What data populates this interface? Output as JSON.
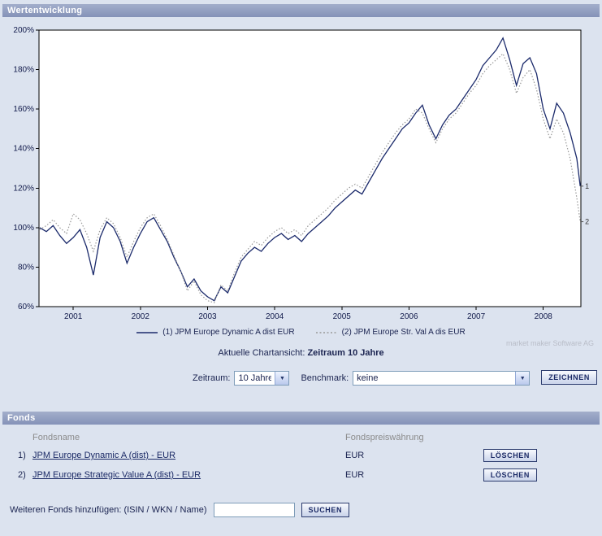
{
  "header": {
    "title": "Wertentwicklung"
  },
  "watermark": "market maker Software AG",
  "caption": {
    "prefix": "Aktuelle Chartansicht:",
    "bold": "Zeitraum 10 Jahre"
  },
  "controls": {
    "zeitraum_label": "Zeitraum:",
    "zeitraum_value": "10 Jahre",
    "benchmark_label": "Benchmark:",
    "benchmark_value": "keine",
    "draw_button": "ZEICHNEN"
  },
  "fonds": {
    "title": "Fonds",
    "columns": {
      "name": "Fondsname",
      "currency": "Fondspreiswährung"
    },
    "rows": [
      {
        "index": "1)",
        "name": "JPM Europe Dynamic A (dist) - EUR",
        "currency": "EUR",
        "delete_label": "LÖSCHEN"
      },
      {
        "index": "2)",
        "name": "JPM Europe Strategic Value A (dist) - EUR",
        "currency": "EUR",
        "delete_label": "LÖSCHEN"
      }
    ],
    "add": {
      "label": "Weiteren Fonds hinzufügen: (ISIN / WKN / Name)",
      "input_value": "",
      "search_button": "SUCHEN"
    }
  },
  "chart_data": {
    "type": "line",
    "title": "Wertentwicklung",
    "xlabel": "",
    "ylabel": "",
    "xlim": [
      2000.49,
      2008.56
    ],
    "ylim": [
      60,
      200
    ],
    "y_ticks": [
      60,
      80,
      100,
      120,
      140,
      160,
      180,
      200
    ],
    "y_tick_suffix": "%",
    "x_ticks": [
      2001,
      2002,
      2003,
      2004,
      2005,
      2006,
      2007,
      2008
    ],
    "grid": false,
    "legend_position": "bottom",
    "x": [
      2000.5,
      2000.6,
      2000.7,
      2000.8,
      2000.9,
      2001.0,
      2001.1,
      2001.2,
      2001.3,
      2001.4,
      2001.5,
      2001.6,
      2001.7,
      2001.8,
      2001.9,
      2002.0,
      2002.1,
      2002.2,
      2002.3,
      2002.4,
      2002.5,
      2002.6,
      2002.7,
      2002.8,
      2002.9,
      2003.0,
      2003.1,
      2003.2,
      2003.3,
      2003.4,
      2003.5,
      2003.6,
      2003.7,
      2003.8,
      2003.9,
      2004.0,
      2004.1,
      2004.2,
      2004.3,
      2004.4,
      2004.5,
      2004.6,
      2004.7,
      2004.8,
      2004.9,
      2005.0,
      2005.1,
      2005.2,
      2005.3,
      2005.4,
      2005.5,
      2005.6,
      2005.7,
      2005.8,
      2005.9,
      2006.0,
      2006.1,
      2006.2,
      2006.3,
      2006.4,
      2006.5,
      2006.6,
      2006.7,
      2006.8,
      2006.9,
      2007.0,
      2007.1,
      2007.2,
      2007.3,
      2007.4,
      2007.5,
      2007.6,
      2007.7,
      2007.8,
      2007.9,
      2008.0,
      2008.1,
      2008.2,
      2008.3,
      2008.4,
      2008.5,
      2008.55
    ],
    "series": [
      {
        "id": 1,
        "name": "JPM Europe Dynamic A dist EUR",
        "legend": "(1) JPM Europe Dynamic A dist EUR",
        "color": "#1b2a6b",
        "style": "solid",
        "end_label": "1",
        "values": [
          100,
          98,
          101,
          96,
          92,
          95,
          99,
          90,
          76,
          95,
          103,
          100,
          93,
          82,
          90,
          97,
          103,
          105,
          99,
          93,
          85,
          78,
          70,
          74,
          68,
          65,
          63,
          70,
          67,
          75,
          83,
          87,
          90,
          88,
          92,
          95,
          97,
          94,
          96,
          93,
          97,
          100,
          103,
          106,
          110,
          113,
          116,
          119,
          117,
          123,
          129,
          135,
          140,
          145,
          150,
          153,
          158,
          162,
          152,
          145,
          152,
          157,
          160,
          165,
          170,
          175,
          182,
          186,
          190,
          196,
          185,
          172,
          183,
          186,
          178,
          160,
          150,
          163,
          158,
          148,
          135,
          121
        ]
      },
      {
        "id": 2,
        "name": "JPM Europe Str. Val A dis EUR",
        "legend": "(2) JPM Europe Str. Val A dis EUR",
        "color": "#999999",
        "style": "dotted",
        "end_label": "2",
        "values": [
          99,
          101,
          104,
          100,
          97,
          107,
          104,
          97,
          88,
          99,
          105,
          102,
          95,
          85,
          93,
          100,
          105,
          107,
          101,
          94,
          86,
          78,
          68,
          73,
          66,
          63,
          62,
          71,
          68,
          77,
          85,
          89,
          93,
          91,
          95,
          98,
          100,
          97,
          99,
          96,
          101,
          104,
          107,
          110,
          114,
          117,
          120,
          122,
          120,
          126,
          132,
          138,
          143,
          148,
          152,
          155,
          160,
          158,
          150,
          143,
          150,
          155,
          158,
          163,
          168,
          172,
          178,
          182,
          185,
          188,
          180,
          168,
          176,
          180,
          170,
          155,
          145,
          155,
          148,
          135,
          115,
          103
        ]
      }
    ]
  }
}
